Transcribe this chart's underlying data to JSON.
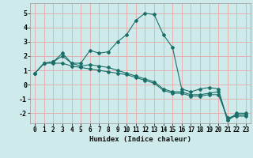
{
  "title": "",
  "xlabel": "Humidex (Indice chaleur)",
  "xlim": [
    -0.5,
    23.5
  ],
  "ylim": [
    -2.7,
    5.7
  ],
  "xticks": [
    0,
    1,
    2,
    3,
    4,
    5,
    6,
    7,
    8,
    9,
    10,
    11,
    12,
    13,
    14,
    15,
    16,
    17,
    18,
    19,
    20,
    21,
    22,
    23
  ],
  "yticks": [
    -2,
    -1,
    0,
    1,
    2,
    3,
    4,
    5
  ],
  "line_color": "#1a7068",
  "bg_color": "#ceeaea",
  "grid_color": "#e8a8a8",
  "lines": [
    {
      "x": [
        0,
        1,
        2,
        3,
        4,
        5,
        6,
        7,
        8,
        9,
        10,
        11,
        12,
        13,
        14,
        15,
        16,
        17,
        18,
        19,
        20,
        21,
        22,
        23
      ],
      "y": [
        0.8,
        1.5,
        1.6,
        2.0,
        1.5,
        1.5,
        2.4,
        2.2,
        2.3,
        3.0,
        3.5,
        4.5,
        5.0,
        4.9,
        3.5,
        2.6,
        -0.3,
        -0.5,
        -0.3,
        -0.2,
        -0.3,
        -2.5,
        -2.1,
        -2.1
      ]
    },
    {
      "x": [
        0,
        1,
        2,
        3,
        4,
        5,
        6,
        7,
        8,
        9,
        10,
        11,
        12,
        13,
        14,
        15,
        16,
        17,
        18,
        19,
        20,
        21,
        22,
        23
      ],
      "y": [
        0.8,
        1.5,
        1.6,
        2.2,
        1.5,
        1.3,
        1.4,
        1.3,
        1.2,
        1.0,
        0.8,
        0.6,
        0.4,
        0.2,
        -0.3,
        -0.5,
        -0.5,
        -0.7,
        -0.7,
        -0.6,
        -0.5,
        -2.5,
        -2.0,
        -2.0
      ]
    },
    {
      "x": [
        0,
        1,
        2,
        3,
        4,
        5,
        6,
        7,
        8,
        9,
        10,
        11,
        12,
        13,
        14,
        15,
        16,
        17,
        18,
        19,
        20,
        21,
        22,
        23
      ],
      "y": [
        0.8,
        1.5,
        1.5,
        1.5,
        1.3,
        1.2,
        1.1,
        1.0,
        0.9,
        0.8,
        0.7,
        0.5,
        0.3,
        0.1,
        -0.4,
        -0.6,
        -0.6,
        -0.8,
        -0.8,
        -0.7,
        -0.7,
        -2.3,
        -2.2,
        -2.2
      ]
    }
  ],
  "tick_fontsize": 5.5,
  "xlabel_fontsize": 6.5
}
